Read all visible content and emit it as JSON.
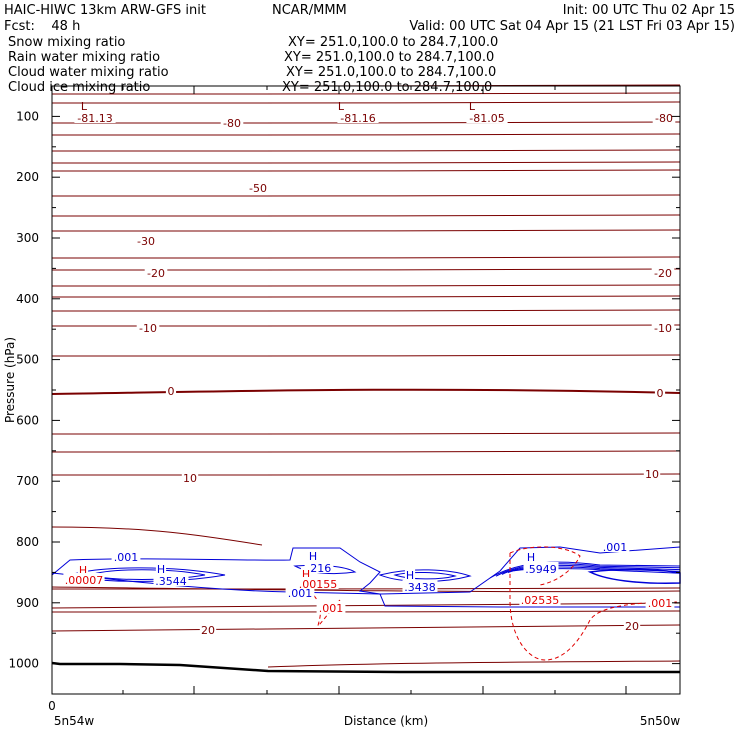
{
  "header": {
    "line1_left": "HAIC-HIWC 13km ARW-GFS init",
    "line1_mid": "NCAR/MMM",
    "line1_right": "Init: 00 UTC Thu 02 Apr 15",
    "fcst": "Fcst:    48 h",
    "valid": "Valid: 00 UTC Sat 04 Apr 15 (21 LST Fri 03 Apr 15)"
  },
  "fields": [
    {
      "name": "Snow mixing ratio",
      "xy": "XY= 251.0,100.0 to 284.7,100.0",
      "color": "#000000"
    },
    {
      "name": "Rain water mixing ratio",
      "xy": "XY= 251.0,100.0 to 284.7,100.0",
      "color": "#e00000"
    },
    {
      "name": "Cloud water mixing ratio",
      "xy": "XY= 251.0,100.0 to 284.7,100.0",
      "color": "#0000d8"
    },
    {
      "name": "Cloud ice mixing ratio",
      "xy": "XY= 251.0,100.0 to 284.7,100.0",
      "color": "#000000"
    }
  ],
  "chart_data": {
    "type": "contour",
    "ylabel": "Pressure (hPa)",
    "xlabel": "Distance (km)",
    "ylim": [
      1050,
      50
    ],
    "yticks": [
      100,
      200,
      300,
      400,
      500,
      600,
      700,
      800,
      900,
      1000
    ],
    "x_left_label": "5n54w",
    "x_right_label": "5n50w",
    "x_origin_label": "0",
    "colors": {
      "temp": "#7a0000",
      "rain": "#e00000",
      "cloud": "#0000d8",
      "ground": "#000000"
    },
    "temperature_labels": [
      {
        "text": "-81.13"
      },
      {
        "text": "-80"
      },
      {
        "text": "-81.16"
      },
      {
        "text": "-81.05"
      },
      {
        "text": "-80"
      },
      {
        "text": "-50"
      },
      {
        "text": "-30"
      },
      {
        "text": "-20"
      },
      {
        "text": "-20"
      },
      {
        "text": "-10"
      },
      {
        "text": "-10"
      },
      {
        "text": "0"
      },
      {
        "text": "0"
      },
      {
        "text": "10"
      },
      {
        "text": "10"
      },
      {
        "text": "20"
      },
      {
        "text": "20"
      }
    ],
    "low_markers": [
      "L",
      "L",
      "L"
    ],
    "cloud_labels": [
      {
        "text": ".001"
      },
      {
        "text": "H"
      },
      {
        "text": ".3544"
      },
      {
        "text": "H"
      },
      {
        "text": ".216"
      },
      {
        "text": ".001"
      },
      {
        "text": "H"
      },
      {
        "text": ".3438"
      },
      {
        "text": "H"
      },
      {
        "text": ".5949"
      },
      {
        "text": ".001"
      }
    ],
    "rain_labels": [
      {
        "text": "H"
      },
      {
        "text": ".00007"
      },
      {
        "text": "H"
      },
      {
        "text": ".00155"
      },
      {
        "text": ".001"
      },
      {
        "text": ".02535"
      },
      {
        "text": ".001"
      }
    ]
  }
}
